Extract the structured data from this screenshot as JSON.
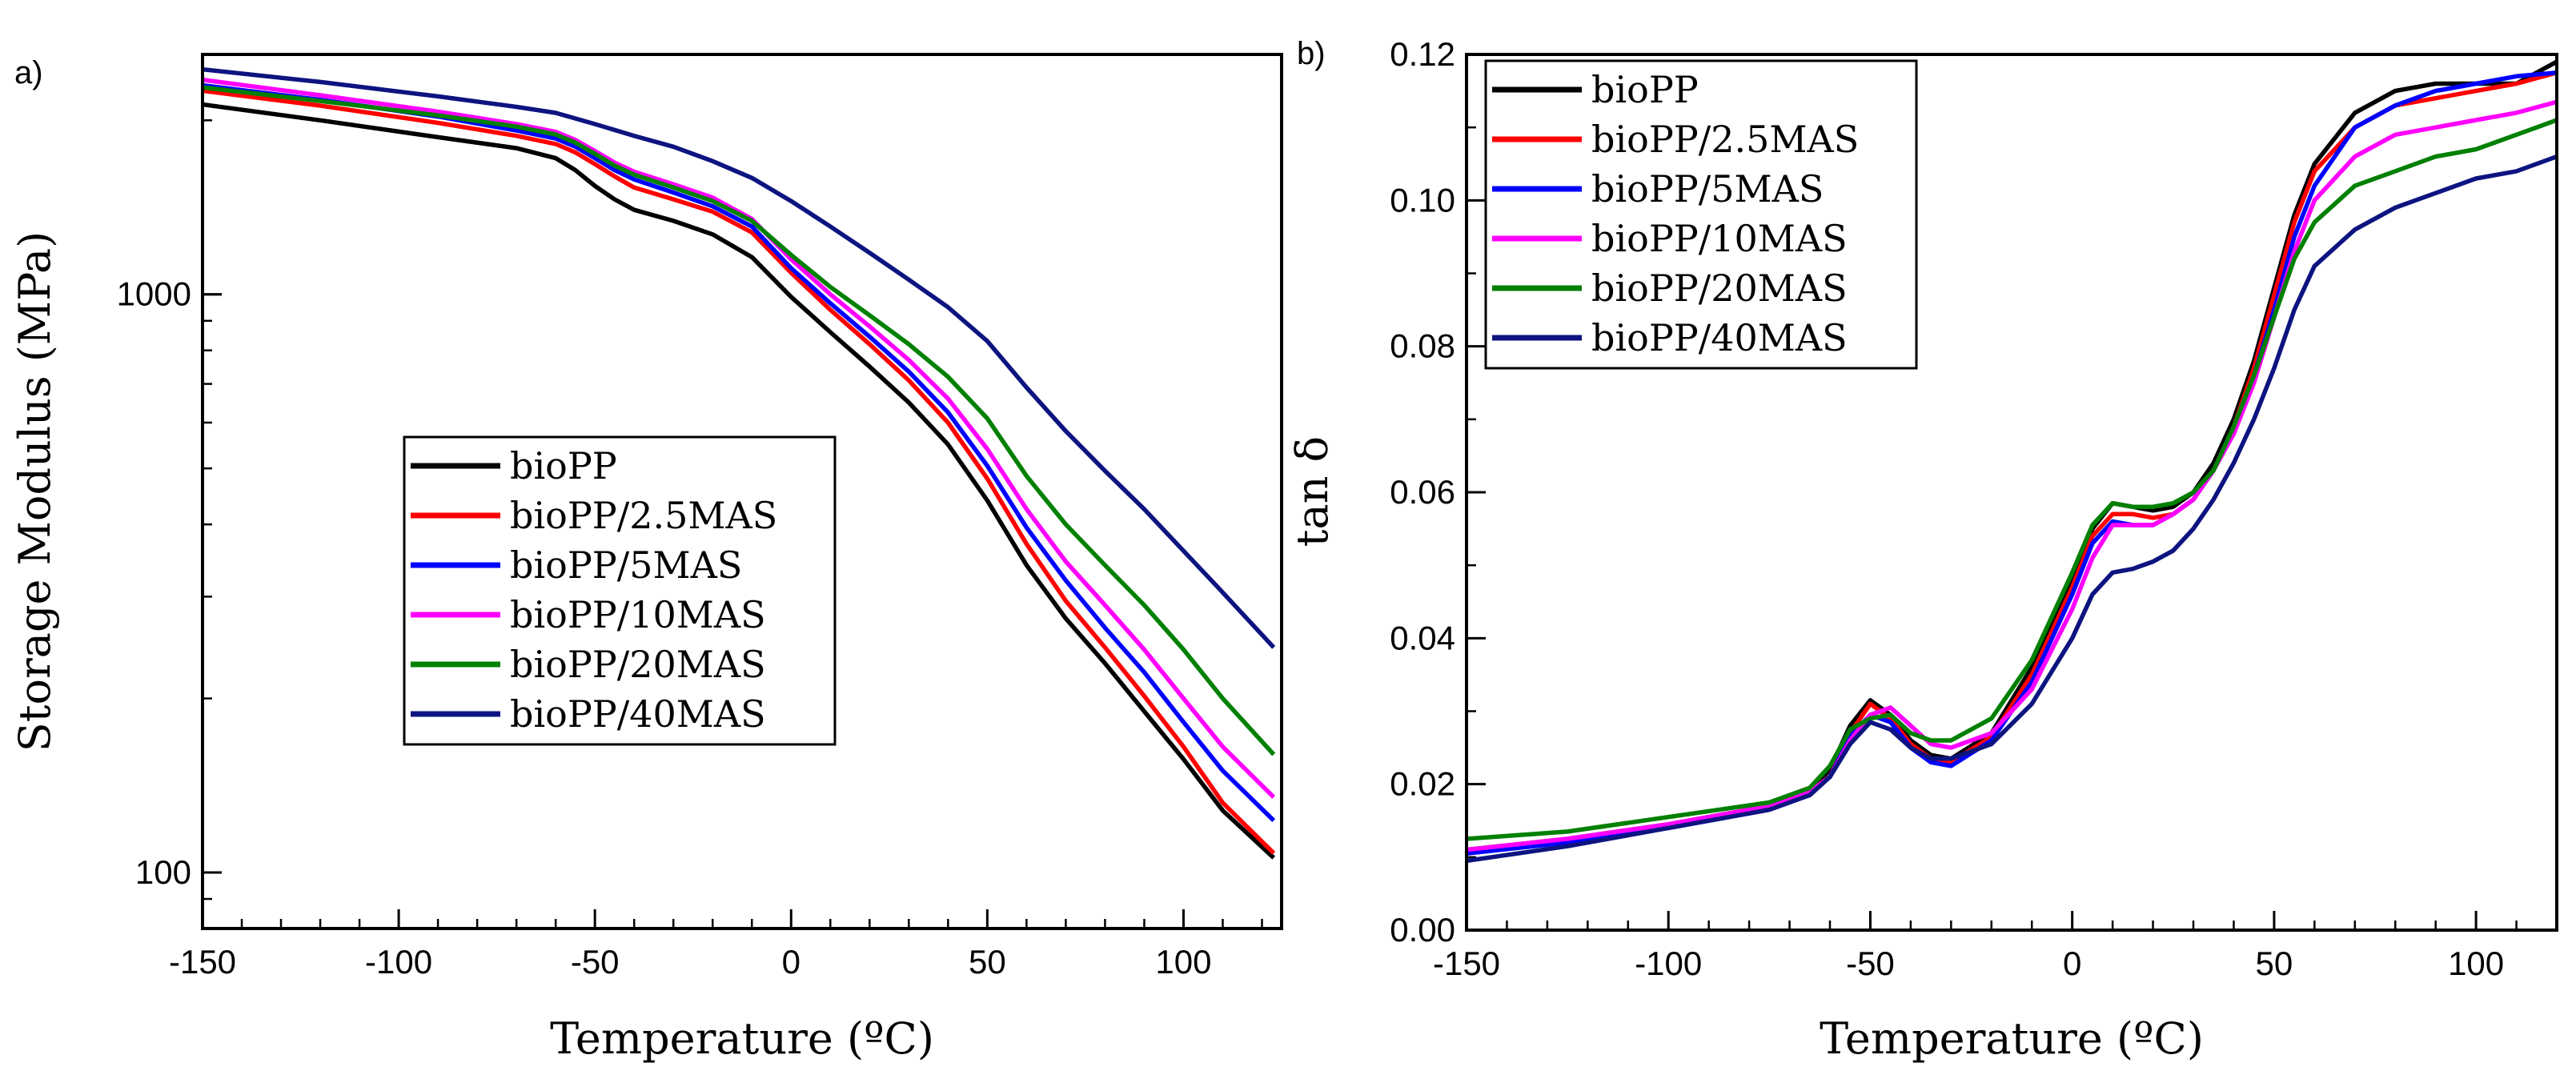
{
  "chart_data": [
    {
      "panel": "a)",
      "type": "line",
      "xlabel": "Temperature (ºC)",
      "ylabel": "Storage Modulus (MPa)",
      "xlim": [
        -150,
        125
      ],
      "ylim": [
        80,
        2600
      ],
      "yscale": "log",
      "xticks": [
        -150,
        -100,
        -50,
        0,
        50,
        100
      ],
      "xtick_labels": [
        "-150",
        "-100",
        "-50",
        "0",
        "50",
        "100"
      ],
      "yticks": [
        100,
        1000
      ],
      "ytick_labels": [
        "100",
        "1000"
      ],
      "legend": {
        "placement": "center-left"
      },
      "series": [
        {
          "name": "bioPP",
          "color": "#000000",
          "x": [
            -150,
            -120,
            -90,
            -70,
            -60,
            -55,
            -50,
            -45,
            -40,
            -30,
            -20,
            -10,
            0,
            10,
            20,
            30,
            40,
            50,
            60,
            70,
            80,
            90,
            100,
            110,
            123
          ],
          "y": [
            2130,
            2000,
            1870,
            1790,
            1720,
            1640,
            1540,
            1460,
            1400,
            1340,
            1270,
            1160,
            990,
            860,
            750,
            650,
            550,
            440,
            340,
            275,
            230,
            190,
            157,
            128,
            106
          ]
        },
        {
          "name": "bioPP/2.5MAS",
          "color": "#ff0000",
          "x": [
            -150,
            -120,
            -90,
            -70,
            -60,
            -55,
            -50,
            -45,
            -40,
            -30,
            -20,
            -10,
            0,
            10,
            20,
            30,
            40,
            50,
            60,
            70,
            80,
            90,
            100,
            110,
            123
          ],
          "y": [
            2250,
            2120,
            1980,
            1880,
            1820,
            1760,
            1680,
            1600,
            1530,
            1460,
            1390,
            1280,
            1090,
            940,
            820,
            710,
            600,
            480,
            370,
            295,
            245,
            202,
            165,
            132,
            108
          ]
        },
        {
          "name": "bioPP/5MAS",
          "color": "#0000ff",
          "x": [
            -150,
            -120,
            -90,
            -70,
            -60,
            -55,
            -50,
            -45,
            -40,
            -30,
            -20,
            -10,
            0,
            10,
            20,
            30,
            40,
            50,
            60,
            70,
            80,
            90,
            100,
            110,
            123
          ],
          "y": [
            2300,
            2170,
            2030,
            1920,
            1860,
            1800,
            1720,
            1640,
            1580,
            1500,
            1420,
            1310,
            1110,
            965,
            845,
            735,
            625,
            505,
            395,
            320,
            265,
            222,
            182,
            150,
            123
          ]
        },
        {
          "name": "bioPP/10MAS",
          "color": "#ff00ff",
          "x": [
            -150,
            -120,
            -90,
            -70,
            -60,
            -55,
            -50,
            -45,
            -40,
            -30,
            -20,
            -10,
            0,
            10,
            20,
            30,
            40,
            50,
            60,
            70,
            80,
            90,
            100,
            110,
            123
          ],
          "y": [
            2350,
            2210,
            2070,
            1970,
            1910,
            1850,
            1770,
            1690,
            1630,
            1550,
            1470,
            1350,
            1150,
            1000,
            880,
            770,
            660,
            540,
            425,
            345,
            290,
            243,
            200,
            165,
            135
          ]
        },
        {
          "name": "bioPP/20MAS",
          "color": "#008000",
          "x": [
            -150,
            -120,
            -90,
            -70,
            -60,
            -55,
            -50,
            -45,
            -40,
            -30,
            -20,
            -10,
            0,
            10,
            20,
            30,
            40,
            50,
            60,
            70,
            80,
            90,
            100,
            110,
            123
          ],
          "y": [
            2280,
            2160,
            2040,
            1950,
            1890,
            1830,
            1750,
            1670,
            1610,
            1530,
            1450,
            1340,
            1170,
            1030,
            920,
            820,
            720,
            610,
            485,
            400,
            340,
            290,
            243,
            200,
            160
          ]
        },
        {
          "name": "bioPP/40MAS",
          "color": "#0d1480",
          "x": [
            -150,
            -120,
            -90,
            -70,
            -60,
            -50,
            -40,
            -30,
            -20,
            -10,
            0,
            10,
            20,
            30,
            40,
            50,
            60,
            70,
            80,
            90,
            100,
            110,
            123
          ],
          "y": [
            2450,
            2330,
            2200,
            2110,
            2060,
            1970,
            1880,
            1800,
            1700,
            1590,
            1450,
            1310,
            1180,
            1060,
            950,
            830,
            690,
            580,
            495,
            425,
            360,
            305,
            245
          ]
        }
      ]
    },
    {
      "panel": "b)",
      "type": "line",
      "xlabel": "Temperature (ºC)",
      "ylabel": "tan δ",
      "xlim": [
        -150,
        120
      ],
      "ylim": [
        0,
        0.12
      ],
      "xticks": [
        -150,
        -100,
        -50,
        0,
        50,
        100
      ],
      "xtick_labels": [
        "-150",
        "-100",
        "-50",
        "0",
        "50",
        "100"
      ],
      "yticks": [
        0,
        0.02,
        0.04,
        0.06,
        0.08,
        0.1,
        0.12
      ],
      "ytick_labels": [
        "0.00",
        "0.02",
        "0.04",
        "0.06",
        "0.08",
        "0.10",
        "0.12"
      ],
      "legend": {
        "placement": "top-left"
      },
      "series": [
        {
          "name": "bioPP",
          "color": "#000000",
          "x": [
            -150,
            -125,
            -100,
            -75,
            -65,
            -60,
            -55,
            -50,
            -45,
            -40,
            -35,
            -30,
            -20,
            -10,
            0,
            5,
            10,
            15,
            20,
            25,
            30,
            35,
            40,
            45,
            50,
            55,
            60,
            70,
            80,
            90,
            100,
            110,
            120
          ],
          "y": [
            0.011,
            0.0125,
            0.0145,
            0.017,
            0.019,
            0.022,
            0.028,
            0.0315,
            0.0295,
            0.026,
            0.024,
            0.0235,
            0.027,
            0.036,
            0.048,
            0.055,
            0.0585,
            0.058,
            0.0575,
            0.058,
            0.06,
            0.064,
            0.07,
            0.078,
            0.088,
            0.098,
            0.105,
            0.112,
            0.115,
            0.116,
            0.116,
            0.116,
            0.119
          ]
        },
        {
          "name": "bioPP/2.5MAS",
          "color": "#ff0000",
          "x": [
            -150,
            -125,
            -100,
            -75,
            -65,
            -60,
            -55,
            -50,
            -45,
            -40,
            -35,
            -30,
            -20,
            -10,
            0,
            5,
            10,
            15,
            20,
            25,
            30,
            35,
            40,
            45,
            50,
            55,
            60,
            70,
            80,
            90,
            100,
            110,
            120
          ],
          "y": [
            0.011,
            0.0125,
            0.0145,
            0.017,
            0.019,
            0.021,
            0.027,
            0.031,
            0.029,
            0.0255,
            0.0235,
            0.023,
            0.0265,
            0.035,
            0.047,
            0.054,
            0.057,
            0.057,
            0.0565,
            0.057,
            0.059,
            0.063,
            0.069,
            0.077,
            0.087,
            0.097,
            0.104,
            0.11,
            0.113,
            0.114,
            0.115,
            0.116,
            0.1175
          ]
        },
        {
          "name": "bioPP/5MAS",
          "color": "#0000ff",
          "x": [
            -150,
            -125,
            -100,
            -75,
            -65,
            -60,
            -55,
            -50,
            -45,
            -40,
            -35,
            -30,
            -20,
            -10,
            0,
            5,
            10,
            15,
            20,
            25,
            30,
            35,
            40,
            45,
            50,
            55,
            60,
            70,
            80,
            90,
            100,
            110,
            120
          ],
          "y": [
            0.0105,
            0.012,
            0.014,
            0.0165,
            0.0185,
            0.021,
            0.0265,
            0.0295,
            0.0285,
            0.025,
            0.023,
            0.0225,
            0.026,
            0.034,
            0.046,
            0.053,
            0.056,
            0.0555,
            0.0555,
            0.057,
            0.059,
            0.063,
            0.069,
            0.076,
            0.085,
            0.095,
            0.102,
            0.11,
            0.113,
            0.115,
            0.116,
            0.117,
            0.1175
          ]
        },
        {
          "name": "bioPP/10MAS",
          "color": "#ff00ff",
          "x": [
            -150,
            -125,
            -100,
            -75,
            -65,
            -60,
            -55,
            -50,
            -45,
            -40,
            -35,
            -30,
            -20,
            -10,
            0,
            5,
            10,
            15,
            20,
            25,
            30,
            35,
            40,
            45,
            50,
            55,
            60,
            70,
            80,
            90,
            100,
            110,
            120
          ],
          "y": [
            0.011,
            0.0125,
            0.0145,
            0.017,
            0.019,
            0.021,
            0.026,
            0.0295,
            0.0305,
            0.028,
            0.0255,
            0.025,
            0.027,
            0.033,
            0.044,
            0.051,
            0.0555,
            0.0555,
            0.0555,
            0.057,
            0.059,
            0.063,
            0.068,
            0.075,
            0.084,
            0.093,
            0.1,
            0.106,
            0.109,
            0.11,
            0.111,
            0.112,
            0.1135
          ]
        },
        {
          "name": "bioPP/20MAS",
          "color": "#008000",
          "x": [
            -150,
            -125,
            -100,
            -75,
            -65,
            -60,
            -55,
            -50,
            -45,
            -40,
            -35,
            -30,
            -20,
            -10,
            0,
            5,
            10,
            15,
            20,
            25,
            30,
            35,
            40,
            45,
            50,
            55,
            60,
            70,
            80,
            90,
            100,
            110,
            120
          ],
          "y": [
            0.0125,
            0.0135,
            0.0155,
            0.0175,
            0.0195,
            0.0225,
            0.0275,
            0.029,
            0.0295,
            0.027,
            0.026,
            0.026,
            0.029,
            0.037,
            0.049,
            0.0555,
            0.0585,
            0.058,
            0.058,
            0.0585,
            0.06,
            0.063,
            0.069,
            0.076,
            0.084,
            0.092,
            0.097,
            0.102,
            0.104,
            0.106,
            0.107,
            0.109,
            0.111
          ]
        },
        {
          "name": "bioPP/40MAS",
          "color": "#0d1480",
          "x": [
            -150,
            -125,
            -100,
            -75,
            -65,
            -60,
            -55,
            -50,
            -45,
            -40,
            -35,
            -30,
            -20,
            -10,
            0,
            5,
            10,
            15,
            20,
            25,
            30,
            35,
            40,
            45,
            50,
            55,
            60,
            70,
            80,
            90,
            100,
            110,
            120
          ],
          "y": [
            0.0095,
            0.0115,
            0.014,
            0.0165,
            0.0185,
            0.021,
            0.0255,
            0.0285,
            0.0275,
            0.025,
            0.0235,
            0.0235,
            0.0255,
            0.031,
            0.04,
            0.046,
            0.049,
            0.0495,
            0.0505,
            0.052,
            0.055,
            0.059,
            0.064,
            0.07,
            0.077,
            0.085,
            0.091,
            0.096,
            0.099,
            0.101,
            0.103,
            0.104,
            0.106
          ]
        }
      ]
    }
  ]
}
